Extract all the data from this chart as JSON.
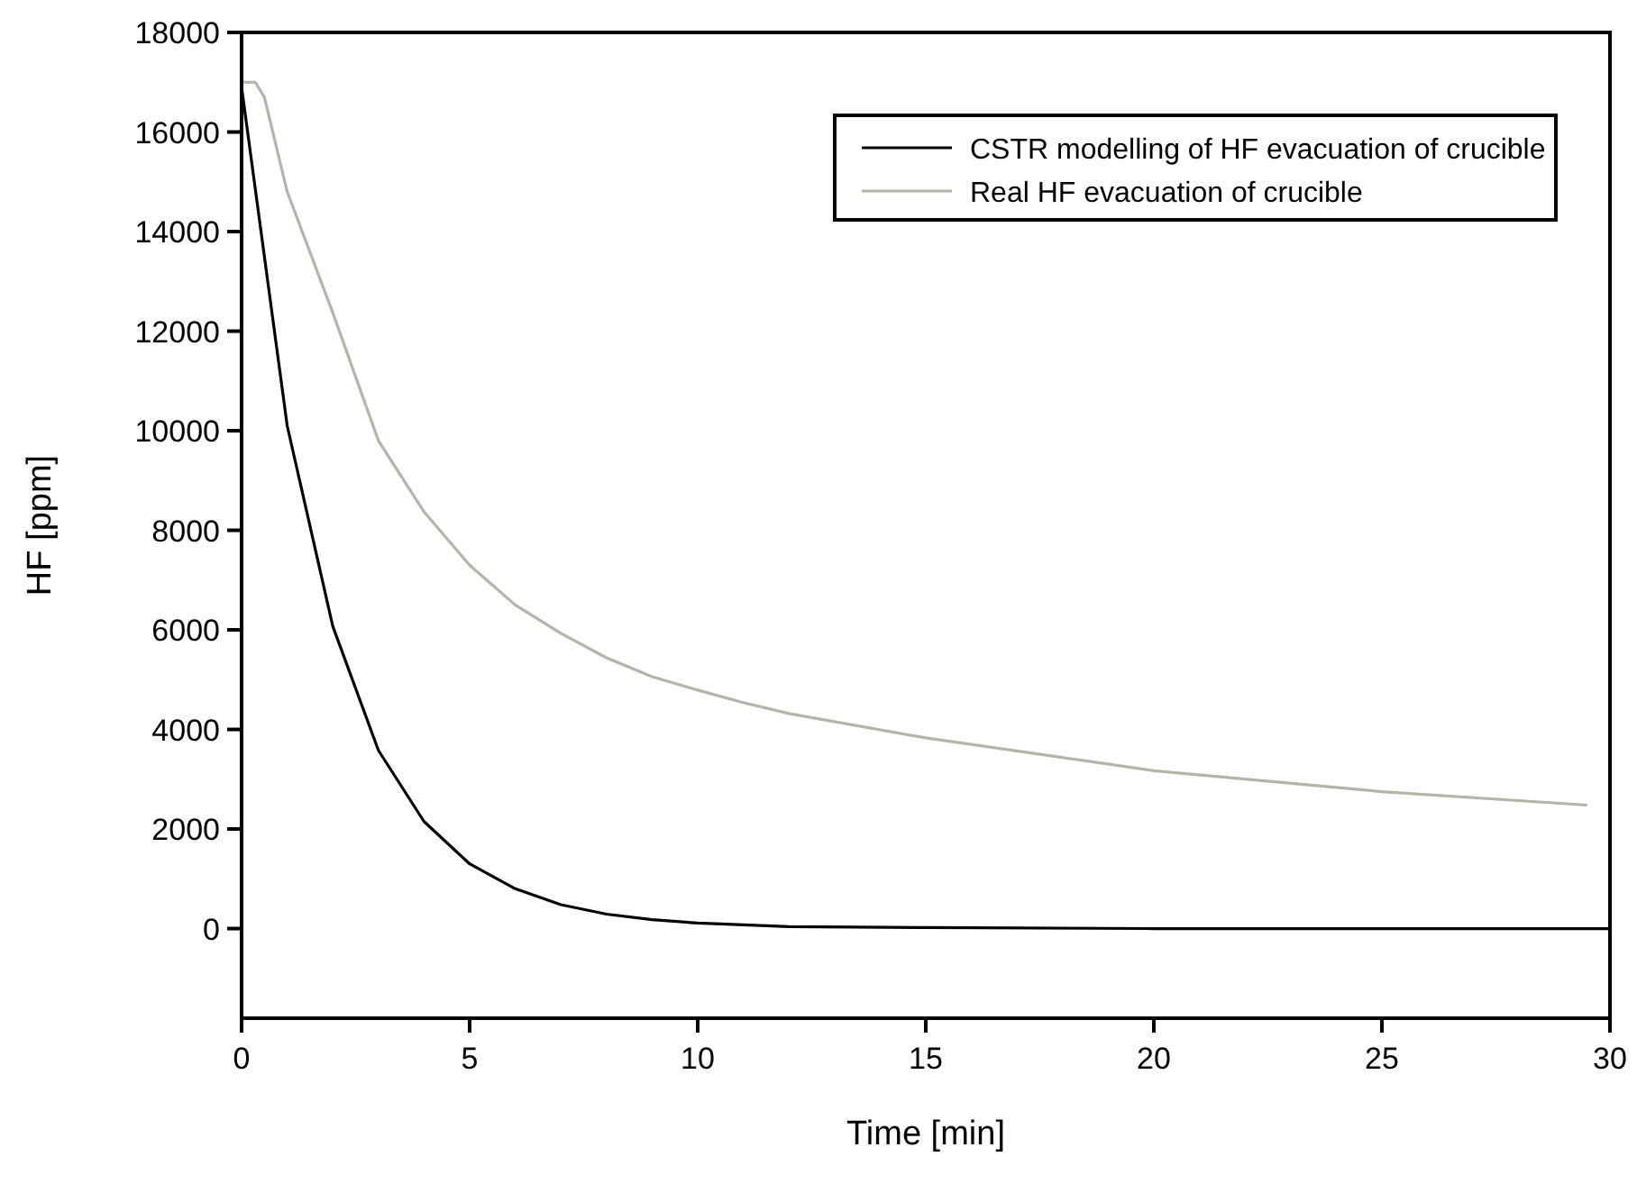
{
  "chart_data": {
    "type": "line",
    "xlabel": "Time [min]",
    "ylabel": "HF [ppm]",
    "xlim": [
      0,
      30
    ],
    "xticks": [
      0,
      5,
      10,
      15,
      20,
      25,
      30
    ],
    "ylim": [
      -1800,
      18000
    ],
    "yticks": [
      0,
      2000,
      4000,
      6000,
      8000,
      10000,
      12000,
      14000,
      16000,
      18000
    ],
    "legend": "top right",
    "grid": false,
    "series": [
      {
        "name": "CSTR modelling of HF evacuation of crucible",
        "color": "#000000",
        "x": [
          0,
          1,
          2,
          3,
          4,
          5,
          6,
          7,
          8,
          9,
          10,
          12,
          15,
          20,
          25,
          30
        ],
        "values": [
          16900,
          10100,
          6070,
          3580,
          2150,
          1300,
          800,
          480,
          290,
          180,
          110,
          40,
          20,
          0,
          0,
          0
        ]
      },
      {
        "name": "Real HF evacuation of crucible",
        "color": "#b4b4a8",
        "x": [
          0,
          0.3,
          0.5,
          1,
          2,
          3,
          4,
          5,
          6,
          7,
          8,
          9,
          10,
          11,
          12,
          15,
          20,
          25,
          29.5
        ],
        "values": [
          17000,
          17000,
          16700,
          14800,
          12370,
          9800,
          8370,
          7300,
          6500,
          5930,
          5440,
          5060,
          4790,
          4540,
          4320,
          3830,
          3170,
          2750,
          2480
        ]
      }
    ]
  }
}
